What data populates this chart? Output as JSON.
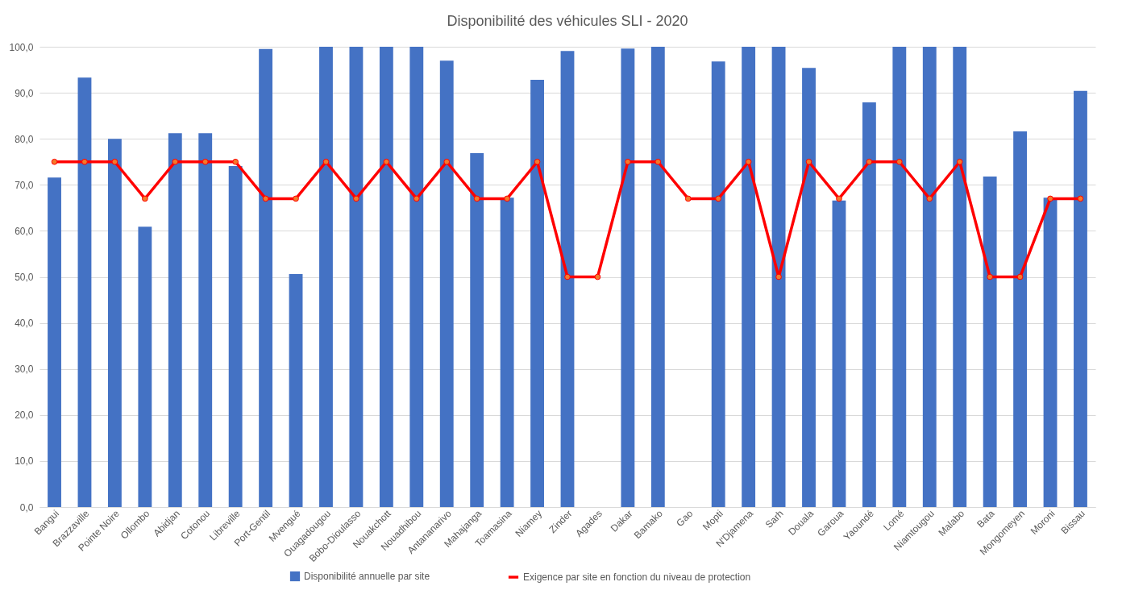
{
  "chart_data": {
    "type": "bar",
    "title": "Disponibilité des véhicules SLI - 2020",
    "categories": [
      "Bangui",
      "Brazzaville",
      "Pointe Noire",
      "Ollombo",
      "Abidjan",
      "Cotonou",
      "Libreville",
      "Port-Gentil",
      "Mvengué",
      "Ouagadougou",
      "Bobo-Dioulasso",
      "Nouakchott",
      "Nouadhibou",
      "Antananarivo",
      "Mahajanga",
      "Toamasina",
      "Niamey",
      "Zinder",
      "Agades",
      "Dakar",
      "Bamako",
      "Gao",
      "Mopti",
      "N'Djamena",
      "Sarh",
      "Douala",
      "Garoua",
      "Yaoundé",
      "Lomé",
      "Niamtougou",
      "Malabo",
      "Bata",
      "Mongomeyen",
      "Moroni",
      "Bissau"
    ],
    "series": [
      {
        "name": "Disponibilité annuelle par site",
        "color": "#4472c4",
        "values": [
          71.6,
          93.3,
          80.0,
          60.9,
          81.2,
          81.2,
          74.1,
          99.5,
          50.6,
          100,
          100,
          100,
          100,
          97.0,
          76.9,
          67.2,
          92.8,
          99.1,
          null,
          99.6,
          100,
          null,
          96.8,
          100,
          100,
          95.4,
          66.6,
          87.9,
          100,
          100,
          100,
          71.8,
          81.6,
          67.2,
          90.4
        ]
      },
      {
        "name": "Exigence par site en fonction du niveau de protection",
        "type": "line",
        "color": "#ff0000",
        "marker": "circle",
        "line_style": "solid",
        "values": [
          75,
          75,
          75,
          67,
          75,
          75,
          75,
          67,
          67,
          75,
          67,
          75,
          67,
          75,
          67,
          67,
          75,
          50,
          50,
          75,
          75,
          67,
          67,
          75,
          50,
          75,
          67,
          75,
          75,
          67,
          75,
          50,
          50,
          67,
          67
        ]
      }
    ],
    "ylim": [
      0,
      100
    ],
    "yticks": [
      {
        "value": 0,
        "label": "0,0"
      },
      {
        "value": 10,
        "label": "10,0"
      },
      {
        "value": 20,
        "label": "20,0"
      },
      {
        "value": 30,
        "label": "30,0"
      },
      {
        "value": 40,
        "label": "40,0"
      },
      {
        "value": 50,
        "label": "50,0"
      },
      {
        "value": 60,
        "label": "60,0"
      },
      {
        "value": 70,
        "label": "70,0"
      },
      {
        "value": 80,
        "label": "80,0"
      },
      {
        "value": 90,
        "label": "90,0"
      },
      {
        "value": 100,
        "label": "100,0"
      }
    ],
    "grid": "y",
    "legend": "bottom"
  }
}
